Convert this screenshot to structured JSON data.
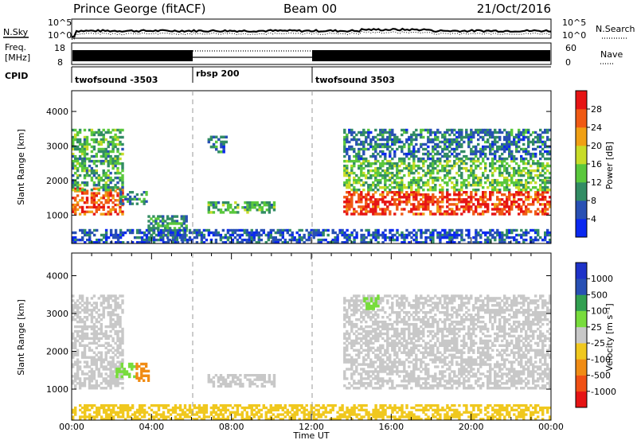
{
  "header": {
    "station": "Prince George (fitACF)",
    "beam": "Beam 00",
    "date": "21/Oct/2016"
  },
  "top_panels": {
    "nsky_label": "N.Sky",
    "nsearch_label": "N.Search",
    "noise_ticks": [
      "10^5",
      "10^0"
    ],
    "freq_label_line1": "Freq.",
    "freq_label_line2": "[MHz]",
    "freq_ticks": [
      "18",
      "8"
    ],
    "nave_label": "Nave",
    "nave_ticks": [
      "60",
      "0"
    ],
    "cpid_label": "CPID",
    "cpid_segments": [
      {
        "name": "twofsound -3503",
        "start_hour": 0,
        "end_hour": 6
      },
      {
        "name": "rbsp 200",
        "start_hour": 6,
        "end_hour": 12
      },
      {
        "name": "twofsound 3503",
        "start_hour": 12,
        "end_hour": 24
      }
    ]
  },
  "chart_data": [
    {
      "type": "heatmap",
      "title": "Power",
      "ylabel": "Slant Range [km]",
      "ylim": [
        180,
        4600
      ],
      "yticks": [
        "1000",
        "2000",
        "3000",
        "4000"
      ],
      "xlim_hours": [
        0,
        24
      ],
      "colorbar_label": "Power [dB]",
      "colorbar_ticks": [
        "4",
        "8",
        "12",
        "16",
        "20",
        "24",
        "28"
      ],
      "colors": [
        "#0a28f0",
        "#2850b4",
        "#328c64",
        "#5ac83c",
        "#c8dc28",
        "#f0a014",
        "#f05a14",
        "#e61414"
      ],
      "regions": [
        {
          "x": [
            0.0,
            2.6
          ],
          "y": [
            1000,
            1800
          ],
          "v": 26
        },
        {
          "x": [
            0.0,
            2.6
          ],
          "y": [
            1700,
            3500
          ],
          "v": 12
        },
        {
          "x": [
            2.4,
            3.8
          ],
          "y": [
            1300,
            1700
          ],
          "v": 10
        },
        {
          "x": [
            3.8,
            5.8
          ],
          "y": [
            250,
            1000
          ],
          "v": 10
        },
        {
          "x": [
            6.8,
            10.2
          ],
          "y": [
            1050,
            1400
          ],
          "v": 12
        },
        {
          "x": [
            6.8,
            7.8
          ],
          "y": [
            2800,
            3300
          ],
          "v": 8
        },
        {
          "x": [
            13.6,
            24.0
          ],
          "y": [
            1000,
            1700
          ],
          "v": 28
        },
        {
          "x": [
            13.6,
            24.0
          ],
          "y": [
            1700,
            2600
          ],
          "v": 14
        },
        {
          "x": [
            13.6,
            24.0
          ],
          "y": [
            2600,
            3500
          ],
          "v": 8
        },
        {
          "x": [
            0.0,
            24.0
          ],
          "y": [
            180,
            600
          ],
          "v": 6
        }
      ]
    },
    {
      "type": "heatmap",
      "title": "Velocity",
      "ylabel": "Slant Range [km]",
      "ylim": [
        180,
        4600
      ],
      "yticks": [
        "1000",
        "2000",
        "3000",
        "4000"
      ],
      "xlim_hours": [
        0,
        24
      ],
      "xlabel": "Time UT",
      "xticks": [
        "00:00",
        "04:00",
        "08:00",
        "12:00",
        "16:00",
        "20:00",
        "00:00"
      ],
      "colorbar_label": "Velocity [m s⁻¹]",
      "colorbar_ticks": [
        "1000",
        "500",
        "100",
        "25",
        "-25",
        "-100",
        "-500",
        "-1000"
      ],
      "colors": [
        "#1e32c8",
        "#2850b4",
        "#32a050",
        "#78dc3c",
        "#c8c8c8",
        "#f0c81e",
        "#f08c14",
        "#f05014",
        "#e61414"
      ],
      "regions": [
        {
          "x": [
            0.0,
            2.6
          ],
          "y": [
            1000,
            3500
          ],
          "v": 0
        },
        {
          "x": [
            2.2,
            3.2
          ],
          "y": [
            1300,
            1700
          ],
          "v": 60
        },
        {
          "x": [
            3.2,
            3.9
          ],
          "y": [
            1200,
            1700
          ],
          "v": -300
        },
        {
          "x": [
            6.8,
            10.2
          ],
          "y": [
            1050,
            1400
          ],
          "v": 0
        },
        {
          "x": [
            13.6,
            24.0
          ],
          "y": [
            1000,
            3500
          ],
          "v": 0
        },
        {
          "x": [
            14.6,
            15.4
          ],
          "y": [
            3100,
            3500
          ],
          "v": 60
        },
        {
          "x": [
            0.0,
            24.0
          ],
          "y": [
            180,
            600
          ],
          "v": -60
        }
      ]
    }
  ]
}
